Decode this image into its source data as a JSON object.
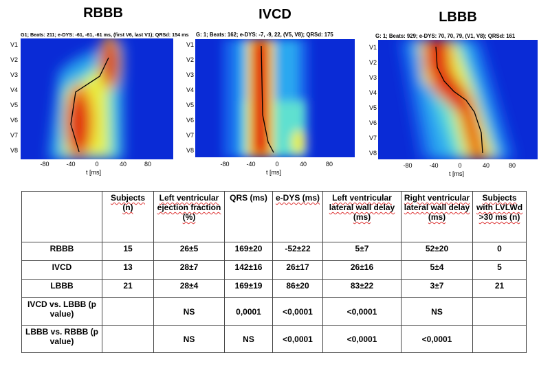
{
  "panels": [
    {
      "title": "RBBB",
      "subtitle": "G1; Beats: 211; e-DYS: -61, -61, -61 ms, (first V6, last V1); QRSd: 154 ms",
      "leads": [
        "V1",
        "V2",
        "V3",
        "V4",
        "V5",
        "V6",
        "V7",
        "V8"
      ],
      "xticks": [
        "-80",
        "-40",
        "0",
        "40",
        "80"
      ],
      "xlabel": "t [ms]"
    },
    {
      "title": "IVCD",
      "subtitle": "G: 1; Beats: 162; e-DYS: -7, -9, 22, (V5, V8); QRSd: 175",
      "leads": [
        "V1",
        "V2",
        "V3",
        "V4",
        "V5",
        "V6",
        "V7",
        "V8"
      ],
      "xticks": [
        "-80",
        "-40",
        "0",
        "40",
        "80"
      ],
      "xlabel": "t [ms]"
    },
    {
      "title": "LBBB",
      "subtitle": "G: 1; Beats: 929; e-DYS: 70, 70, 79, (V1, V8); QRSd: 161",
      "leads": [
        "V1",
        "V2",
        "V3",
        "V4",
        "V5",
        "V6",
        "V7",
        "V8"
      ],
      "xticks": [
        "-80",
        "-40",
        "0",
        "40",
        "80"
      ],
      "xlabel": "t [ms]"
    }
  ],
  "table": {
    "headers": [
      "",
      "Subjects (n)",
      "Left ventricular ejection fraction (%)",
      "QRS (ms)",
      "e-DYS (ms)",
      "Left ventricular lateral wall delay (ms)",
      "Right ventricular lateral wall delay (ms)",
      "Subjects with LVLWd >30 ms (n)"
    ],
    "rows": [
      [
        "RBBB",
        "15",
        "26±5",
        "169±20",
        "-52±22",
        "5±7",
        "52±20",
        "0"
      ],
      [
        "IVCD",
        "13",
        "28±7",
        "142±16",
        "26±17",
        "26±16",
        "5±4",
        "5"
      ],
      [
        "LBBB",
        "21",
        "28±4",
        "169±19",
        "86±20",
        "83±22",
        "3±7",
        "21"
      ],
      [
        "IVCD vs. LBBB (p value)",
        "",
        "NS",
        "0,0001",
        "<0,0001",
        "<0,0001",
        "NS",
        ""
      ],
      [
        "LBBB vs. RBBB (p value)",
        "",
        "NS",
        "NS",
        "<0,0001",
        "<0,0001",
        "<0,0001",
        ""
      ]
    ]
  }
}
